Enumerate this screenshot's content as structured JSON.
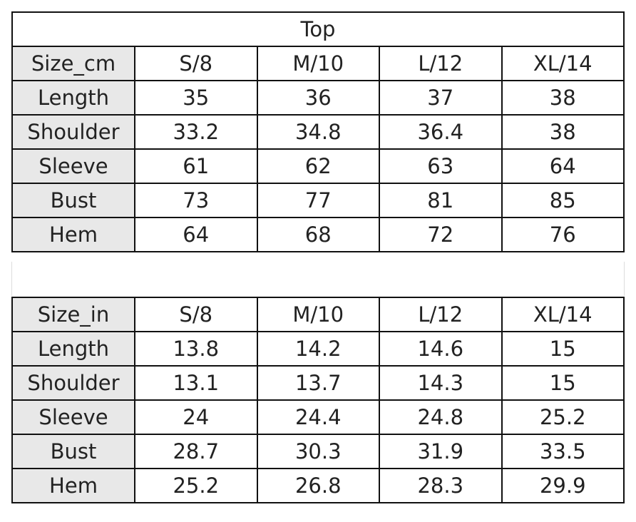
{
  "title": "Top",
  "tables": [
    {
      "header": [
        "Size_cm",
        "S/8",
        "M/10",
        "L/12",
        "XL/14"
      ],
      "rows": [
        [
          "Length",
          35,
          36,
          37,
          38
        ],
        [
          "Shoulder",
          33.2,
          34.8,
          36.4,
          38
        ],
        [
          "Sleeve",
          61,
          62,
          63,
          64
        ],
        [
          "Bust",
          73,
          77,
          81,
          85
        ],
        [
          "Hem",
          64,
          68,
          72,
          76
        ]
      ]
    },
    {
      "header": [
        "Size_in",
        "S/8",
        "M/10",
        "L/12",
        "XL/14"
      ],
      "rows": [
        [
          "Length",
          13.8,
          14.2,
          14.6,
          15
        ],
        [
          "Shoulder",
          13.1,
          13.7,
          14.3,
          15
        ],
        [
          "Sleeve",
          24,
          24.4,
          24.8,
          25.2
        ],
        [
          "Bust",
          28.7,
          30.3,
          31.9,
          33.5
        ],
        [
          "Hem",
          25.2,
          26.8,
          28.3,
          29.9
        ]
      ]
    }
  ]
}
